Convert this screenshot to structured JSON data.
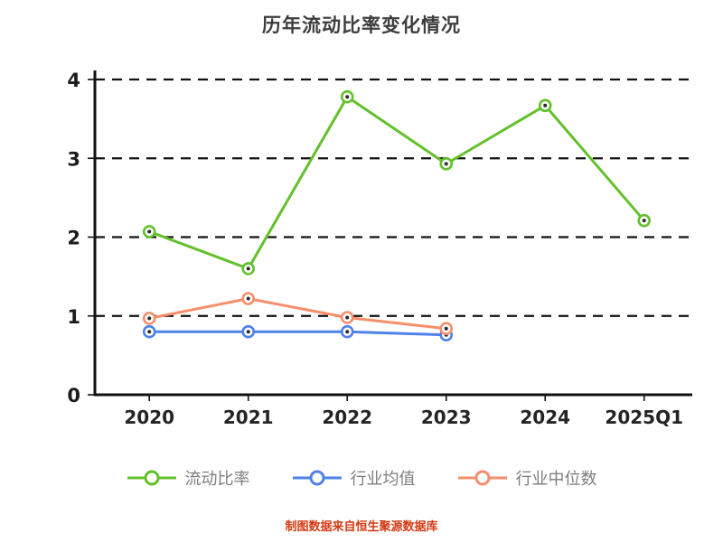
{
  "title": "历年流动比率变化情况",
  "footer": "制图数据来自恒生聚源数据库",
  "colors": {
    "axis": "#121212",
    "title_text": "#3d3d3d",
    "legend_text": "#7e7e7e",
    "footer_text": "#d43a12",
    "series_current_ratio": "#63c02a",
    "series_industry_mean": "#4f81e8",
    "series_industry_median": "#f68e6b"
  },
  "chart_data": {
    "type": "line",
    "title": "历年流动比率变化情况",
    "categories": [
      "2020",
      "2021",
      "2022",
      "2023",
      "2024",
      "2025Q1"
    ],
    "series": [
      {
        "name": "流动比率",
        "color": "#63c02a",
        "values": [
          2.07,
          1.6,
          3.78,
          2.93,
          3.67,
          2.21
        ]
      },
      {
        "name": "行业均值",
        "color": "#4f81e8",
        "values": [
          0.8,
          0.8,
          0.8,
          0.76,
          null,
          null
        ]
      },
      {
        "name": "行业中位数",
        "color": "#f68e6b",
        "values": [
          0.97,
          1.22,
          0.98,
          0.84,
          null,
          null
        ]
      }
    ],
    "ylim": [
      0,
      4
    ],
    "yticks": [
      0,
      1,
      2,
      3,
      4
    ],
    "grid": "horizontal-dashed",
    "legend_position": "bottom",
    "source_note": "制图数据来自恒生聚源数据库"
  }
}
